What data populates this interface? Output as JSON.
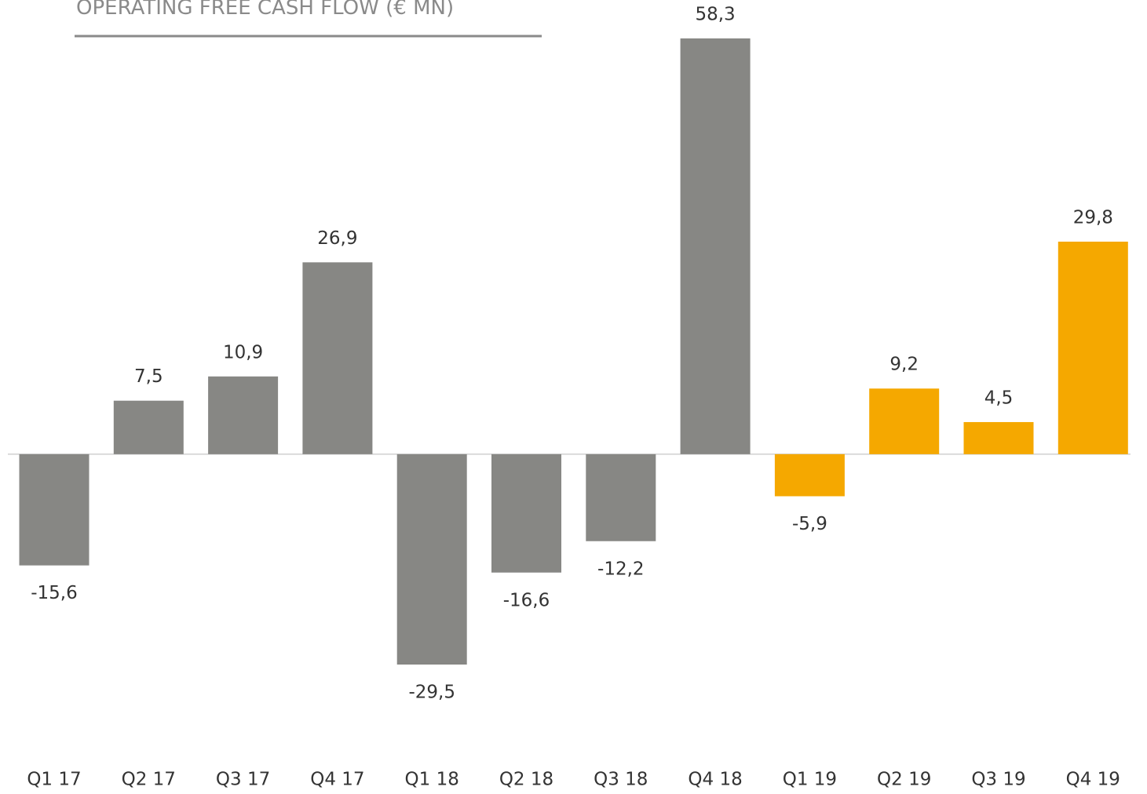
{
  "chart_data": {
    "type": "bar",
    "title": "OPERATING FREE CASH FLOW (€ MN)",
    "categories": [
      "Q1 17",
      "Q2 17",
      "Q3 17",
      "Q4 17",
      "Q1 18",
      "Q2 18",
      "Q3 18",
      "Q4 18",
      "Q1 19",
      "Q2 19",
      "Q3 19",
      "Q4 19"
    ],
    "values": [
      -15.6,
      7.5,
      10.9,
      26.9,
      -29.5,
      -16.6,
      -12.2,
      58.3,
      -5.9,
      9.2,
      4.5,
      29.8
    ],
    "value_labels": [
      "-15,6",
      "7,5",
      "10,9",
      "26,9",
      "-29,5",
      "-16,6",
      "-12,2",
      "58,3",
      "-5,9",
      "9,2",
      "4,5",
      "29,8"
    ],
    "colors": [
      "#878784",
      "#878784",
      "#878784",
      "#878784",
      "#878784",
      "#878784",
      "#878784",
      "#878784",
      "#f5a800",
      "#f5a800",
      "#f5a800",
      "#f5a800"
    ],
    "ylim": [
      -35,
      60
    ]
  }
}
